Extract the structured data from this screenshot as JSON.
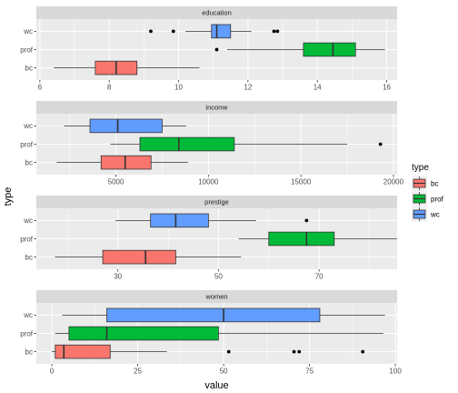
{
  "chart_data": {
    "type": "boxplot",
    "xlabel": "value",
    "ylabel": "type",
    "categories": [
      "wc",
      "prof",
      "bc"
    ],
    "legend": {
      "title": "type",
      "position": "right",
      "entries": [
        {
          "label": "bc",
          "color": "#F8766D"
        },
        {
          "label": "prof",
          "color": "#00BA38"
        },
        {
          "label": "wc",
          "color": "#619CFF"
        }
      ]
    },
    "grid": true,
    "panels": [
      {
        "title": "education",
        "xlim": [
          5.9,
          16.3
        ],
        "ticks": [
          6,
          8,
          10,
          12,
          14,
          16
        ],
        "boxes": [
          {
            "group": "wc",
            "min": 10.2,
            "q1": 10.95,
            "median": 11.1,
            "q3": 11.5,
            "max": 12.1,
            "outliers": [
              9.2,
              9.85,
              12.75,
              12.85
            ]
          },
          {
            "group": "prof",
            "min": 11.4,
            "q1": 13.6,
            "median": 14.45,
            "q3": 15.1,
            "max": 15.95,
            "outliers": [
              11.1
            ]
          },
          {
            "group": "bc",
            "min": 6.4,
            "q1": 7.6,
            "median": 8.2,
            "q3": 8.8,
            "max": 10.6,
            "outliers": []
          }
        ]
      },
      {
        "title": "income",
        "xlim": [
          700,
          20200
        ],
        "ticks": [
          5000,
          10000,
          15000,
          20000
        ],
        "boxes": [
          {
            "group": "wc",
            "min": 2200,
            "q1": 3600,
            "median": 5100,
            "q3": 7500,
            "max": 8800,
            "outliers": []
          },
          {
            "group": "prof",
            "min": 4700,
            "q1": 6300,
            "median": 8400,
            "q3": 11400,
            "max": 17500,
            "outliers": [
              19300
            ]
          },
          {
            "group": "bc",
            "min": 1800,
            "q1": 4200,
            "median": 5500,
            "q3": 6900,
            "max": 8900,
            "outliers": []
          }
        ]
      },
      {
        "title": "prestige",
        "xlim": [
          13.8,
          85.5
        ],
        "ticks": [
          30,
          50,
          70
        ],
        "boxes": [
          {
            "group": "wc",
            "min": 29.5,
            "q1": 36.5,
            "median": 41.5,
            "q3": 48,
            "max": 57.5,
            "outliers": [
              67.5
            ]
          },
          {
            "group": "prof",
            "min": 54,
            "q1": 60,
            "median": 67.5,
            "q3": 73,
            "max": 85.5,
            "outliers": []
          },
          {
            "group": "bc",
            "min": 17.5,
            "q1": 27,
            "median": 35.5,
            "q3": 41.5,
            "max": 54.5,
            "outliers": []
          }
        ]
      },
      {
        "title": "women",
        "xlim": [
          -4.5,
          100.5
        ],
        "ticks": [
          0,
          25,
          50,
          75,
          100
        ],
        "boxes": [
          {
            "group": "wc",
            "min": 3,
            "q1": 16,
            "median": 50,
            "q3": 78,
            "max": 97,
            "outliers": []
          },
          {
            "group": "prof",
            "min": 1,
            "q1": 5,
            "median": 16,
            "q3": 48.5,
            "max": 96.5,
            "outliers": []
          },
          {
            "group": "bc",
            "min": 0,
            "q1": 1,
            "median": 3.5,
            "q3": 17,
            "max": 33.5,
            "outliers": [
              51.5,
              70.5,
              72,
              90.5
            ]
          }
        ]
      }
    ]
  }
}
